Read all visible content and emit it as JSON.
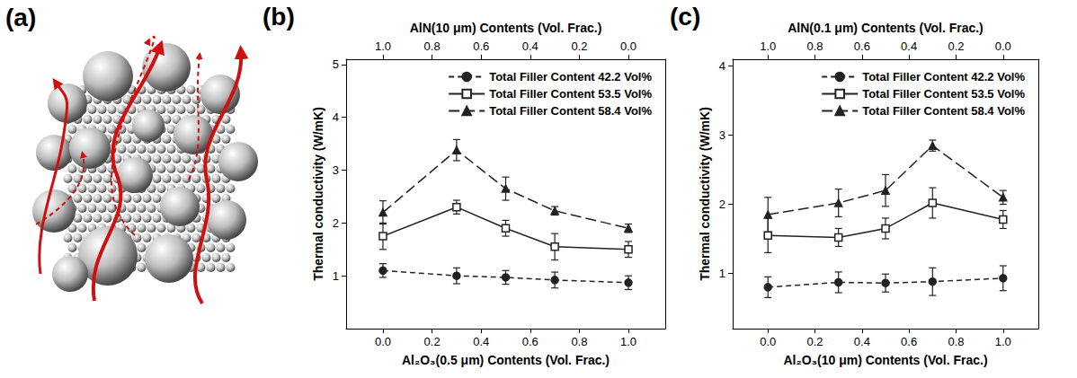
{
  "panel_labels": [
    "(a)",
    "(b)",
    "(c)"
  ],
  "chart_data": [
    {
      "type": "line",
      "x_label": "Al₂O₃(0.5 μm) Contents (Vol. Frac.)",
      "x2_label": "AlN(10 μm) Contents (Vol. Frac.)",
      "y_label": "Thermal conductivity (W/mK)",
      "x": [
        0,
        0.3,
        0.5,
        0.7,
        1.0
      ],
      "xlim": [
        -0.15,
        1.15
      ],
      "xticks": [
        {
          "value": 0,
          "label": "0.0"
        },
        {
          "value": 0.2,
          "label": "0.2"
        },
        {
          "value": 0.4,
          "label": "0.4"
        },
        {
          "value": 0.6,
          "label": "0.6"
        },
        {
          "value": 0.8,
          "label": "0.8"
        },
        {
          "value": 1,
          "label": "1.0"
        }
      ],
      "x2lim": [
        1.15,
        -0.15
      ],
      "x2ticks": [
        {
          "value": 1,
          "label": "1.0"
        },
        {
          "value": 0.8,
          "label": "0.8"
        },
        {
          "value": 0.6,
          "label": "0.6"
        },
        {
          "value": 0.4,
          "label": "0.4"
        },
        {
          "value": 0.2,
          "label": "0.2"
        },
        {
          "value": 0,
          "label": "0.0"
        }
      ],
      "ylim": [
        0,
        5.1
      ],
      "yticks": [
        1,
        2,
        3,
        4,
        5
      ],
      "grid": false,
      "legend": "upper right",
      "series": [
        {
          "name": "Total Filler Content 42.2 Vol%",
          "color": "#222222",
          "marker": "circle",
          "line_style": "dashed",
          "values": [
            1.1,
            1.0,
            0.97,
            0.92,
            0.87
          ],
          "errors": [
            0.13,
            0.15,
            0.13,
            0.15,
            0.13
          ]
        },
        {
          "name": "Total Filler Content 53.5 Vol%",
          "color": "#222222",
          "marker": "open square",
          "line_style": "solid",
          "values": [
            1.75,
            2.3,
            1.9,
            1.55,
            1.5
          ],
          "errors": [
            0.25,
            0.13,
            0.15,
            0.25,
            0.15
          ]
        },
        {
          "name": "Total Filler Content 58.4 Vol%",
          "color": "#222222",
          "marker": "triangle",
          "line_style": "long-dashed",
          "values": [
            2.2,
            3.38,
            2.65,
            2.23,
            1.9
          ],
          "errors": [
            0.22,
            0.2,
            0.22,
            0.08,
            0.08
          ]
        }
      ]
    },
    {
      "type": "line",
      "x_label": "Al₂O₃(10 μm) Contents (Vol. Frac.)",
      "x2_label": "AlN(0.1 μm) Contents (Vol. Frac.)",
      "y_label": "Thermal conductivity (W/mK)",
      "x": [
        0,
        0.3,
        0.5,
        0.7,
        1.0
      ],
      "xlim": [
        -0.15,
        1.15
      ],
      "xticks": [
        {
          "value": 0,
          "label": "0.0"
        },
        {
          "value": 0.2,
          "label": "0.2"
        },
        {
          "value": 0.4,
          "label": "0.4"
        },
        {
          "value": 0.6,
          "label": "0.6"
        },
        {
          "value": 0.8,
          "label": "0.8"
        },
        {
          "value": 1,
          "label": "1.0"
        }
      ],
      "x2lim": [
        1.15,
        -0.15
      ],
      "x2ticks": [
        {
          "value": 1,
          "label": "1.0"
        },
        {
          "value": 0.8,
          "label": "0.8"
        },
        {
          "value": 0.6,
          "label": "0.6"
        },
        {
          "value": 0.4,
          "label": "0.4"
        },
        {
          "value": 0.2,
          "label": "0.2"
        },
        {
          "value": 0,
          "label": "0.0"
        }
      ],
      "ylim": [
        0.2,
        4.1
      ],
      "yticks": [
        1,
        2,
        3,
        4
      ],
      "grid": false,
      "legend": "upper right",
      "series": [
        {
          "name": "Total Filler Content 42.2 Vol%",
          "color": "#222222",
          "marker": "circle",
          "line_style": "dashed",
          "values": [
            0.8,
            0.87,
            0.86,
            0.88,
            0.93
          ],
          "errors": [
            0.15,
            0.15,
            0.13,
            0.2,
            0.18
          ]
        },
        {
          "name": "Total Filler Content 53.5 Vol%",
          "color": "#222222",
          "marker": "open square",
          "line_style": "solid",
          "values": [
            1.55,
            1.52,
            1.65,
            2.02,
            1.78
          ],
          "errors": [
            0.25,
            0.13,
            0.15,
            0.22,
            0.13
          ]
        },
        {
          "name": "Total Filler Content 58.4 Vol%",
          "color": "#222222",
          "marker": "triangle",
          "line_style": "long-dashed",
          "values": [
            1.85,
            2.02,
            2.2,
            2.85,
            2.1
          ],
          "errors": [
            0.25,
            0.2,
            0.23,
            0.08,
            0.1
          ]
        }
      ]
    }
  ]
}
